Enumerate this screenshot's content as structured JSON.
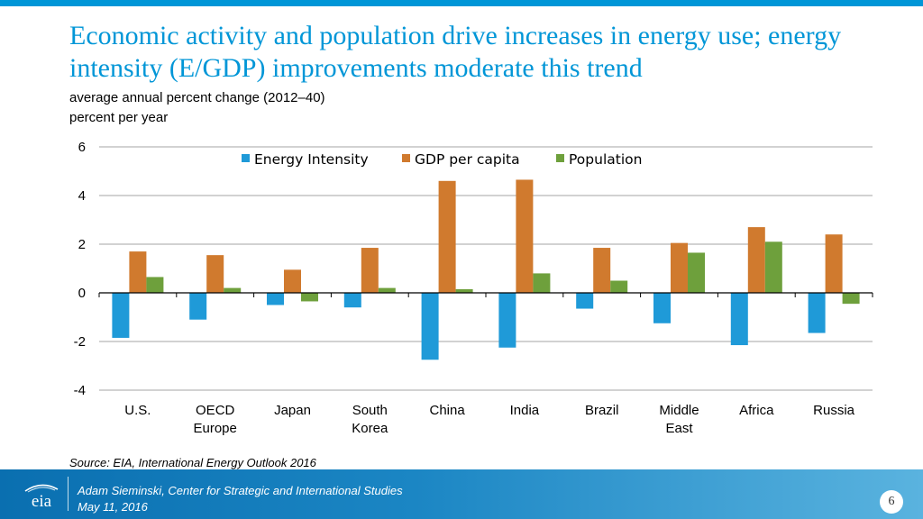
{
  "slide": {
    "title": "Economic activity and population drive increases in energy use; energy intensity (E/GDP) improvements moderate this trend",
    "subtitle": "average annual percent change (2012–40)",
    "unit_label": "percent per year",
    "source": "Source:  EIA, International Energy Outlook 2016",
    "presenter": "Adam Sieminski, Center for Strategic and International Studies",
    "date": "May 11, 2016",
    "page_number": "6",
    "logo_text": "eia",
    "colors": {
      "accent": "#0096d7",
      "footer": "#1b86c4"
    }
  },
  "chart_data": {
    "type": "bar",
    "title": "Economic activity and population drive increases in energy use; energy intensity (E/GDP) improvements moderate this trend",
    "subtitle": "average annual percent change (2012–40)",
    "ylabel": "percent per year",
    "xlabel": "",
    "ylim": [
      -4,
      6
    ],
    "yticks": [
      6,
      4,
      2,
      0,
      -2,
      -4
    ],
    "ytick_labels": [
      "6",
      "4",
      "2",
      "0",
      "-2",
      "-4"
    ],
    "grid": true,
    "legend_position": "top",
    "categories": [
      [
        "U.S."
      ],
      [
        "OECD",
        "Europe"
      ],
      [
        "Japan"
      ],
      [
        "South",
        "Korea"
      ],
      [
        "China"
      ],
      [
        "India"
      ],
      [
        "Brazil"
      ],
      [
        "Middle",
        "East"
      ],
      [
        "Africa"
      ],
      [
        "Russia"
      ]
    ],
    "series": [
      {
        "name": "Energy Intensity",
        "color": "#1f9ad8",
        "values": [
          -1.85,
          -1.1,
          -0.5,
          -0.6,
          -2.75,
          -2.25,
          -0.65,
          -1.25,
          -2.15,
          -1.65
        ]
      },
      {
        "name": "GDP per capita",
        "color": "#d07a2e",
        "values": [
          1.7,
          1.55,
          0.95,
          1.85,
          4.6,
          4.65,
          1.85,
          2.05,
          2.7,
          2.4
        ]
      },
      {
        "name": "Population",
        "color": "#6ea03c",
        "values": [
          0.65,
          0.2,
          -0.35,
          0.2,
          0.15,
          0.8,
          0.5,
          1.65,
          2.1,
          -0.45
        ]
      }
    ]
  }
}
